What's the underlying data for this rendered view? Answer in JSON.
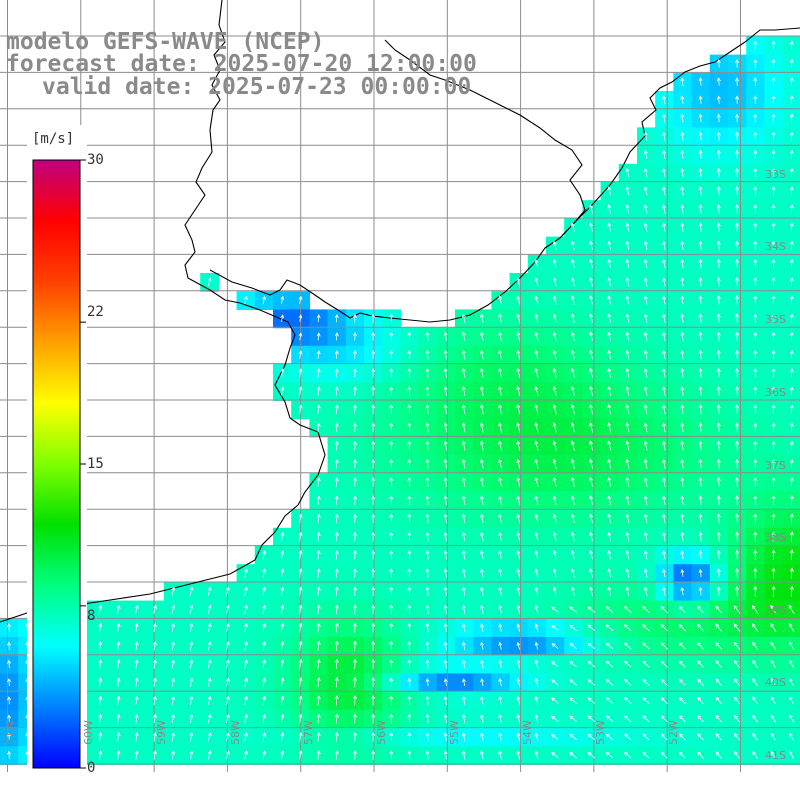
{
  "header": {
    "model_line": "modelo GEFS-WAVE (NCEP)",
    "forecast_line": "forecast date: 2025-07-20 12:00:00",
    "valid_line": "valid date: 2025-07-23 00:00:00"
  },
  "colorbar": {
    "unit": "[m/s]",
    "tick_labels": [
      "30",
      "22",
      "15",
      "8",
      "0"
    ],
    "tick_values": [
      30,
      22,
      15,
      8,
      0
    ],
    "min": 0,
    "max": 30,
    "colors": [
      "#0000ff",
      "#0080ff",
      "#00ffff",
      "#00ff80",
      "#00e000",
      "#80ff00",
      "#ffff00",
      "#ffa000",
      "#ff4000",
      "#ff0000",
      "#c00080"
    ]
  },
  "map": {
    "land_color": "#ffffff",
    "coast_color": "#000000",
    "grid_color": "#8c8c8c",
    "arrow_color": "#ffffff",
    "lat_labels": [
      "33S",
      "34S",
      "35S",
      "36S",
      "37S",
      "38S",
      "39S",
      "40S",
      "41S"
    ],
    "lon_labels": [
      "61W",
      "60W",
      "59W",
      "58W",
      "57W",
      "56W",
      "55W",
      "54W",
      "53W",
      "52W"
    ]
  }
}
